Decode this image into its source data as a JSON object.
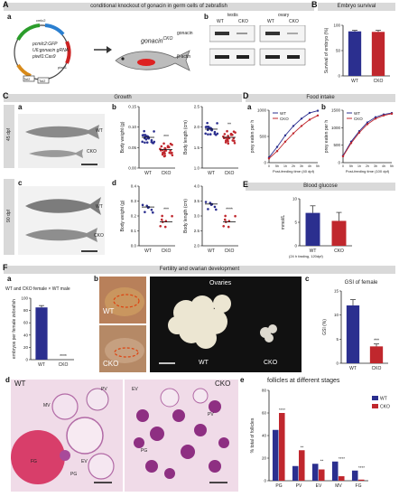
{
  "figure": {
    "panel_letters": {
      "A": "A",
      "B": "B",
      "C": "C",
      "D": "D",
      "E": "E",
      "F": "F"
    },
    "sub_letters": {
      "a": "a",
      "b": "b",
      "c": "c",
      "d": "d",
      "e": "e"
    }
  },
  "sectionA": {
    "header": "conditional knockout of gonacin in germ cells of zebrafish",
    "plasmid": {
      "name1": "pcmlc2:GFP",
      "name2": "U6:gonacin gRNA",
      "name3": "piwil1:Cas9",
      "gfp": "cmlc2",
      "cas9": "piwil1",
      "tol2a": "Tol2",
      "tol2b": "Tol2"
    },
    "fish_label": "gonacin",
    "fish_sup": "CKO",
    "blot": {
      "testis": "testis",
      "ovary": "ovary",
      "wt": "WT",
      "cko": "CKO",
      "gonacin": "gonacin",
      "actin": "β-actin"
    }
  },
  "sectionB": {
    "header": "Embryo survival"
  },
  "sectionC": {
    "header": "Growth",
    "dpf45": "45 dpf",
    "dpf90": "90 dpf",
    "wt": "WT",
    "cko": "CKO"
  },
  "sectionD": {
    "header": "Food intake",
    "legend_wt": "WT",
    "legend_cko": "CKO",
    "xlabel_a": "Post-feeding time (40 dpf)",
    "xlabel_b": "Post-feeding time (100 dpf)",
    "ylabel_a": "prey eaten per h",
    "ylabel_b": "prey eaten per h"
  },
  "sectionE": {
    "header": "Blood glucose",
    "x1": "WT",
    "x2": "CKO",
    "x3": "(24 h fasting, 120dpf)"
  },
  "sectionF": {
    "header": "Fertility and ovarian development",
    "cross": "WT and CKO female × WT male",
    "wt_label": "WT",
    "cko_label": "CKO",
    "ovaries": "Ovaries",
    "stage_labels": {
      "mv": "MV",
      "pv": "PV",
      "fg": "FG",
      "pg": "PG",
      "ev": "EV"
    },
    "gsi_title": "GSI of female",
    "follicle_title": "follicles at different stages"
  },
  "colors": {
    "wt": "#2b2f8f",
    "cko": "#c0272d",
    "header": "#d9d9d9"
  },
  "chart_data": [
    {
      "id": "B",
      "type": "bar",
      "title": "Embryo survival",
      "categories": [
        "WT",
        "CKO"
      ],
      "values": [
        88,
        87
      ],
      "errors": [
        2,
        3
      ],
      "ylabel": "Survival of embryo (%)",
      "ylim": [
        0,
        100
      ],
      "yticks": [
        "0",
        "50",
        "100"
      ]
    },
    {
      "id": "Cb1",
      "type": "scatter",
      "categories": [
        "WT",
        "CKO"
      ],
      "ylabel": "Body weight (g)",
      "ylim": [
        0,
        0.15
      ],
      "yticks": [
        "0.00",
        "0.05",
        "0.10",
        "0.15"
      ],
      "means": [
        0.075,
        0.045
      ],
      "sig": [
        "",
        "***"
      ]
    },
    {
      "id": "Cb2",
      "type": "scatter",
      "categories": [
        "WT",
        "CKO"
      ],
      "ylabel": "Body length (cm)",
      "ylim": [
        1.0,
        2.5
      ],
      "yticks": [
        "1.0",
        "1.5",
        "2.0",
        "2.5"
      ],
      "means": [
        1.95,
        1.75
      ],
      "sig": [
        "",
        "**"
      ]
    },
    {
      "id": "Cd1",
      "type": "scatter",
      "categories": [
        "WT",
        "CKO"
      ],
      "ylabel": "Body weight (g)",
      "ylim": [
        0.0,
        0.4
      ],
      "yticks": [
        "0.0",
        "0.1",
        "0.2",
        "0.3",
        "0.4"
      ],
      "means": [
        0.26,
        0.16
      ],
      "sig": [
        "",
        "***"
      ]
    },
    {
      "id": "Cd2",
      "type": "scatter",
      "categories": [
        "WT",
        "CKO"
      ],
      "ylabel": "Body length (cm)",
      "ylim": [
        2.0,
        4.0
      ],
      "yticks": [
        "2.0",
        "2.5",
        "3.0",
        "3.5",
        "4.0"
      ],
      "means": [
        3.4,
        2.8
      ],
      "sig": [
        "",
        "****"
      ]
    },
    {
      "id": "Da",
      "type": "line",
      "x": [
        "0",
        "5h",
        "1h",
        "2h",
        "3h",
        "4h",
        "5h"
      ],
      "ylabel": "prey eaten per h",
      "yticks": [
        "0",
        "500",
        "1000"
      ],
      "series": [
        {
          "name": "WT",
          "values": [
            100,
            300,
            520,
            700,
            840,
            950,
            990
          ]
        },
        {
          "name": "CKO",
          "values": [
            80,
            220,
            400,
            560,
            700,
            820,
            900
          ]
        }
      ]
    },
    {
      "id": "Db",
      "type": "line",
      "x": [
        "0",
        "5h",
        "1h",
        "2h",
        "3h",
        "4h",
        "5h"
      ],
      "ylabel": "prey eaten per h",
      "yticks": [
        "0",
        "500",
        "1000",
        "1500"
      ],
      "series": [
        {
          "name": "WT",
          "values": [
            200,
            600,
            900,
            1150,
            1300,
            1380,
            1420
          ]
        },
        {
          "name": "CKO",
          "values": [
            180,
            560,
            860,
            1100,
            1260,
            1350,
            1400
          ]
        }
      ]
    },
    {
      "id": "E",
      "type": "bar",
      "title": "Blood glucose",
      "categories": [
        "WT",
        "CKO"
      ],
      "values": [
        7.0,
        5.3
      ],
      "errors": [
        1.5,
        1.8
      ],
      "ylabel": "mmol/L",
      "ylim": [
        0,
        10
      ],
      "yticks": [
        "0",
        "5",
        "10"
      ]
    },
    {
      "id": "Fa",
      "type": "bar",
      "categories": [
        "WT",
        "CKO"
      ],
      "values": [
        85,
        0
      ],
      "errors": [
        3,
        0
      ],
      "ylabel": "embryos per female zebrafish",
      "ylim": [
        0,
        100
      ],
      "yticks": [
        "0",
        "20",
        "40",
        "60",
        "80",
        "100"
      ],
      "sig": [
        "",
        "****"
      ]
    },
    {
      "id": "Fc",
      "type": "bar",
      "title": "GSI of female",
      "categories": [
        "WT",
        "CKO"
      ],
      "values": [
        12,
        3.5
      ],
      "errors": [
        1.2,
        0.5
      ],
      "ylabel": "GSI (%)",
      "ylim": [
        0,
        15
      ],
      "yticks": [
        "0",
        "5",
        "10",
        "15"
      ],
      "sig": [
        "",
        "***"
      ]
    },
    {
      "id": "Fe",
      "type": "bar",
      "title": "follicles at different stages",
      "categories": [
        "PG",
        "PV",
        "EV",
        "MV",
        "FG"
      ],
      "series": [
        {
          "name": "WT",
          "values": [
            45,
            13,
            15,
            17,
            9
          ]
        },
        {
          "name": "CKO",
          "values": [
            60,
            27,
            10,
            4,
            1
          ]
        }
      ],
      "ylabel": "% total of follicles",
      "ylim": [
        0,
        80
      ],
      "yticks": [
        "0",
        "20",
        "40",
        "60",
        "80"
      ],
      "sig": [
        "****",
        "**",
        "**",
        "****",
        "****"
      ]
    }
  ]
}
